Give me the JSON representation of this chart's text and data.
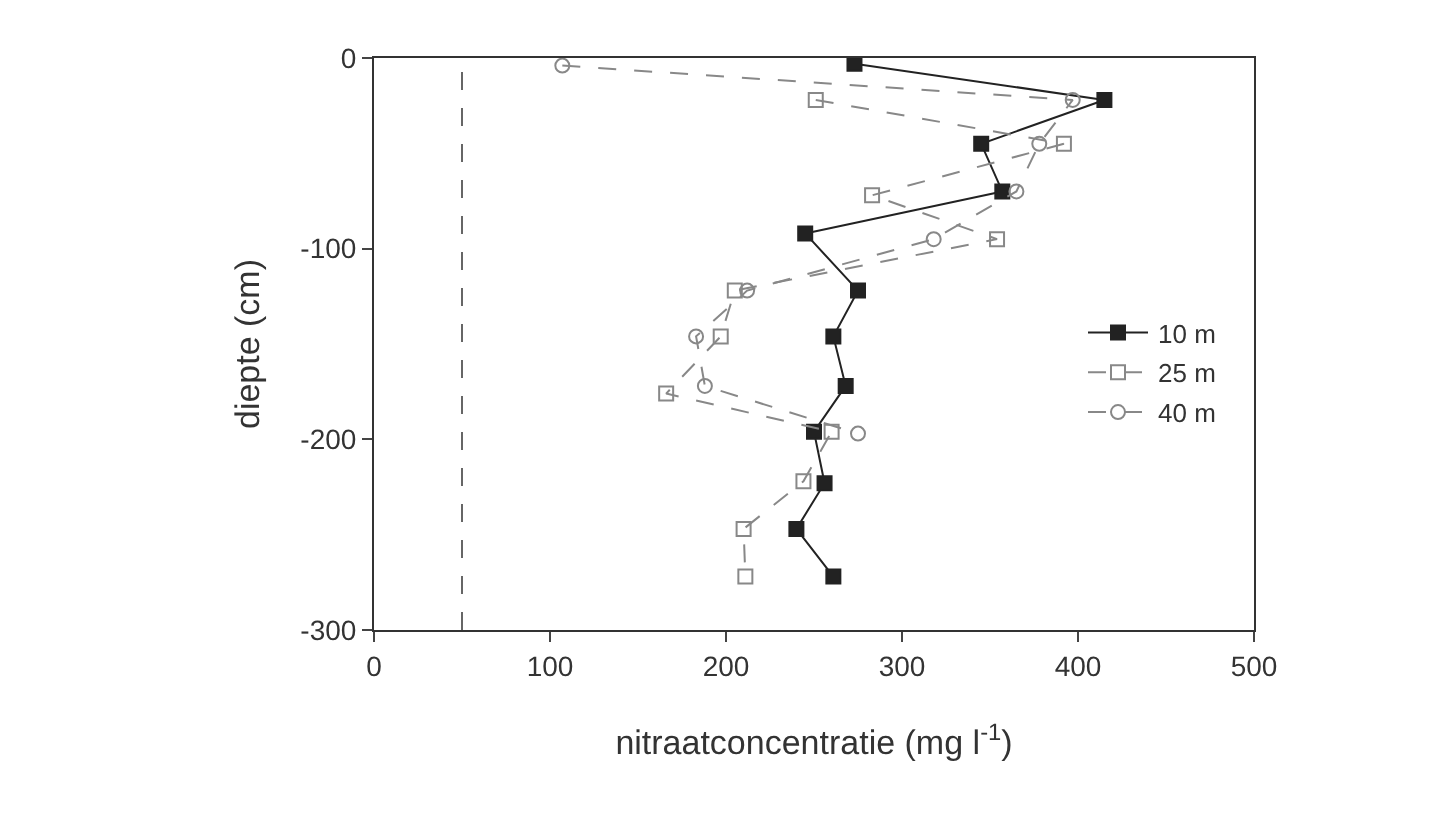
{
  "chart_data": {
    "type": "line",
    "xlabel": "nitraatconcentratie (mg l$^{-1}$)",
    "ylabel": "diepte (cm)",
    "xlim": [
      0,
      500
    ],
    "xticks": [
      0,
      100,
      200,
      300,
      400,
      500
    ],
    "ylim": [
      -300,
      0
    ],
    "yticks": [
      -300,
      -200,
      -100,
      0
    ],
    "legend": "right",
    "ref_lines": [
      {
        "axis": "x",
        "value": 50,
        "color": "#666666",
        "line_style": "dashed"
      }
    ],
    "series": [
      {
        "name": "10 m",
        "color": "#222222",
        "marker": "square",
        "line_style": "solid",
        "x": [
          273,
          415,
          345,
          357,
          245,
          275,
          261,
          268,
          250,
          256,
          240,
          261
        ],
        "values": [
          -3,
          -22,
          -45,
          -70,
          -92,
          -122,
          -146,
          -172,
          -196,
          -223,
          -247,
          -272
        ]
      },
      {
        "name": "25 m",
        "color": "#888888",
        "marker": "square",
        "line_style": "dashed",
        "x": [
          251,
          392,
          283,
          354,
          205,
          197,
          166,
          260,
          244,
          210,
          211
        ],
        "values": [
          -22,
          -45,
          -72,
          -95,
          -122,
          -146,
          -176,
          -196,
          -222,
          -247,
          -272
        ]
      },
      {
        "name": "40 m",
        "color": "#888888",
        "marker": "circle",
        "line_style": "dashed",
        "x": [
          107,
          397,
          378,
          365,
          318,
          212,
          183,
          188,
          275
        ],
        "values": [
          -4,
          -22,
          -45,
          -70,
          -95,
          -122,
          -146,
          -172,
          -197
        ]
      }
    ]
  }
}
